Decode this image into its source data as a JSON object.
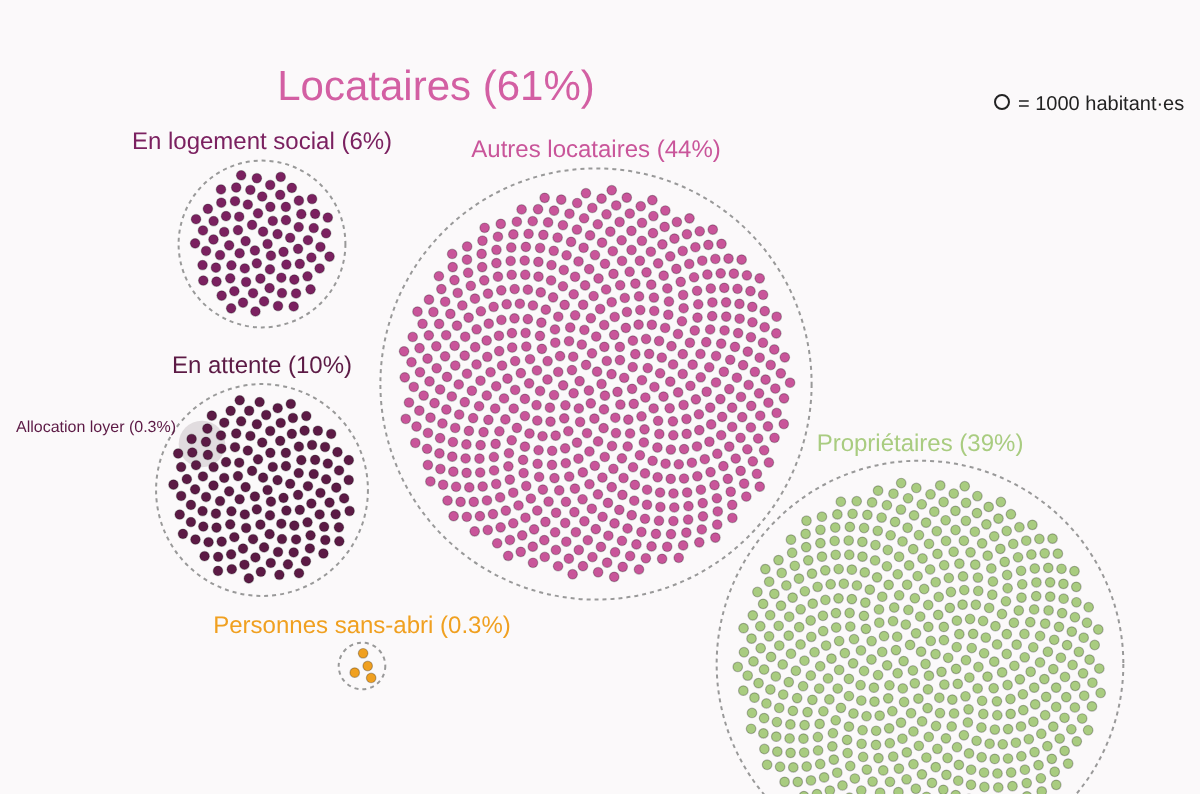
{
  "chart_data": {
    "type": "other",
    "title": "Locataires (61%)",
    "categories": [
      "En logement social",
      "En attente",
      "Allocation loyer",
      "Autres locataires",
      "Personnes sans-abri",
      "Propriétaires"
    ],
    "values": [
      6,
      10,
      0.3,
      44,
      0.3,
      39
    ],
    "value_labels": [
      "(6%)",
      "(10%)",
      "(0.3%)",
      "(44%)",
      "(0.3%)",
      "(39%)"
    ],
    "colors": [
      "#7b2160",
      "#5c1a45",
      "#c8c0c4",
      "#c9559a",
      "#f0a020",
      "#a9cc80"
    ],
    "annotations": [
      "= 1000 habitant·es"
    ]
  }
}
